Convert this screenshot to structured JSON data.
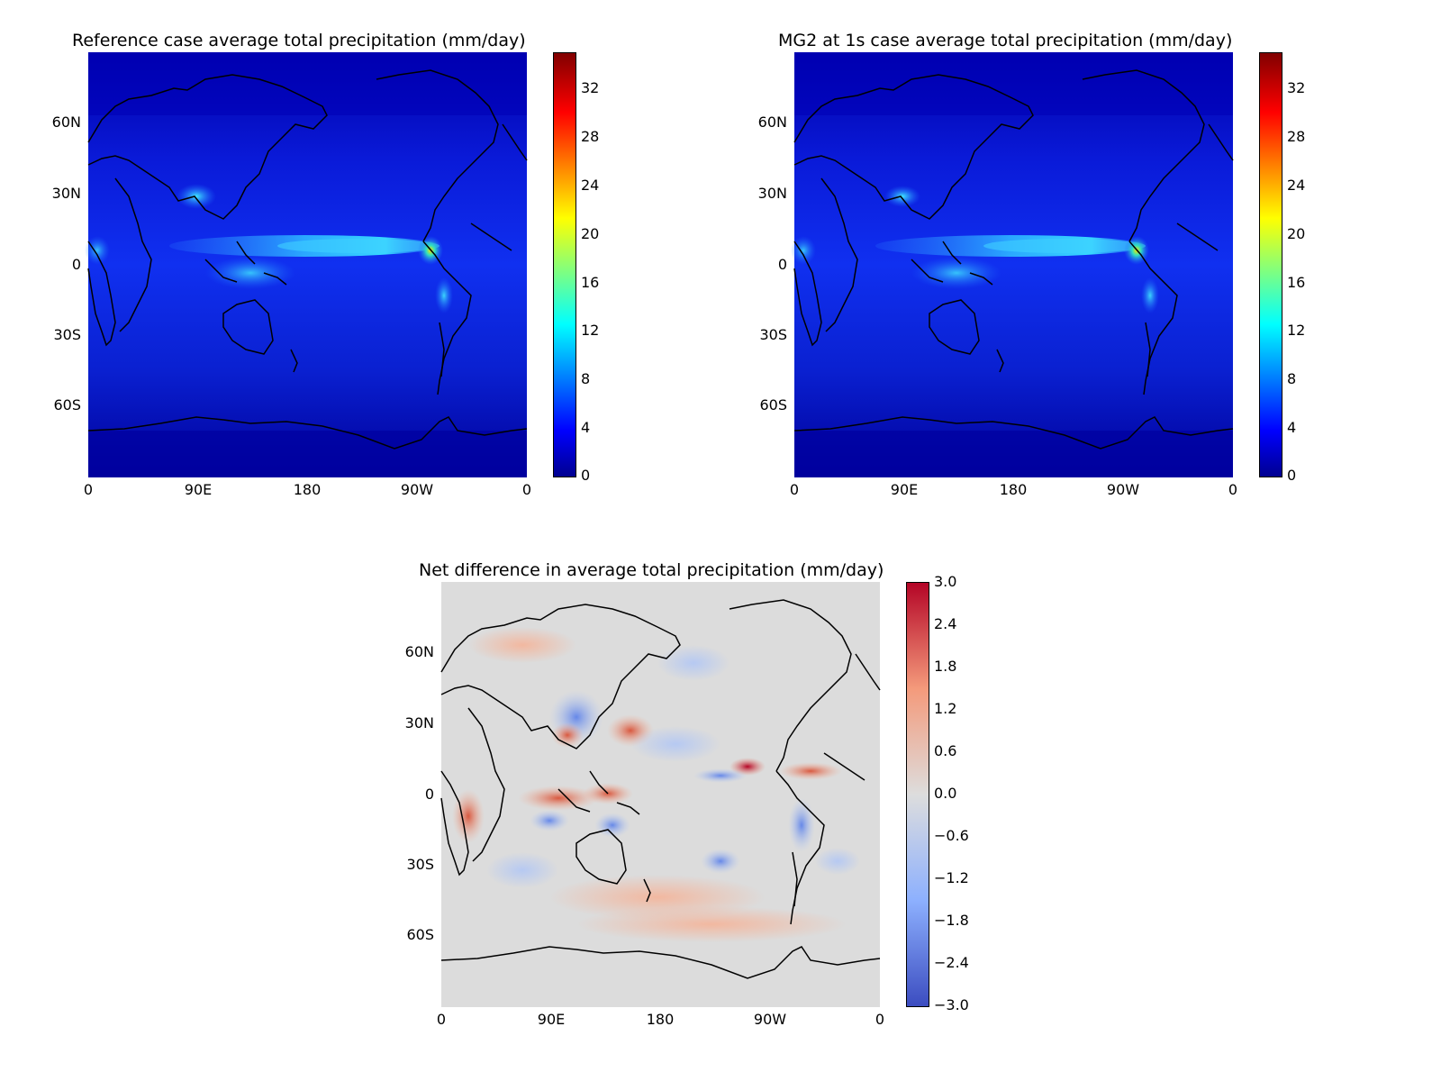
{
  "figure": {
    "panels": [
      {
        "id": "reference",
        "title": "Reference case average total precipitation (mm/day)",
        "colormap": "jet",
        "y_ticks": [
          "60N",
          "30N",
          "0",
          "30S",
          "60S"
        ],
        "x_ticks": [
          "0",
          "90E",
          "180",
          "90W",
          "0"
        ],
        "colorbar": {
          "range": [
            0,
            35
          ],
          "ticks": [
            "32",
            "28",
            "24",
            "20",
            "16",
            "12",
            "8",
            "4",
            "0"
          ]
        }
      },
      {
        "id": "mg2",
        "title": "MG2 at 1s case average total precipitation (mm/day)",
        "colormap": "jet",
        "y_ticks": [
          "60N",
          "30N",
          "0",
          "30S",
          "60S"
        ],
        "x_ticks": [
          "0",
          "90E",
          "180",
          "90W",
          "0"
        ],
        "colorbar": {
          "range": [
            0,
            35
          ],
          "ticks": [
            "32",
            "28",
            "24",
            "20",
            "16",
            "12",
            "8",
            "4",
            "0"
          ]
        }
      },
      {
        "id": "difference",
        "title": "Net difference in average total precipitation (mm/day)",
        "colormap": "coolwarm",
        "y_ticks": [
          "60N",
          "30N",
          "0",
          "30S",
          "60S"
        ],
        "x_ticks": [
          "0",
          "90E",
          "180",
          "90W",
          "0"
        ],
        "colorbar": {
          "range": [
            -3.0,
            3.0
          ],
          "ticks": [
            "3.0",
            "2.4",
            "1.8",
            "1.2",
            "0.6",
            "0.0",
            "−0.6",
            "−1.2",
            "−1.8",
            "−2.4",
            "−3.0"
          ]
        }
      }
    ],
    "colors": {
      "jet_low": "#00008f",
      "jet_mid": "#1e3cff",
      "jet_high": "#800000",
      "diff_neutral": "#dcdcdc",
      "diff_positive": "#b40426",
      "diff_negative": "#3b4cc0",
      "coastline": "#000000"
    }
  }
}
